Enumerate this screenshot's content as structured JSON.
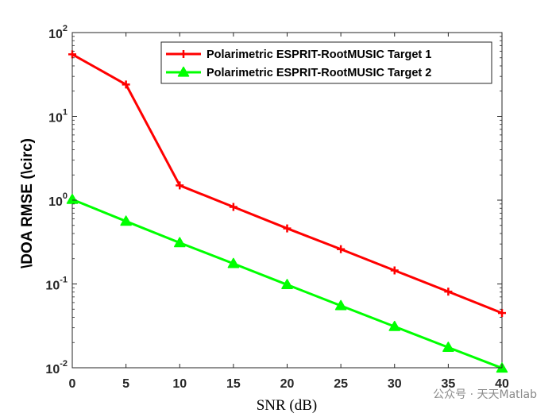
{
  "chart_data": {
    "type": "line",
    "xlabel": "SNR (dB)",
    "ylabel": "\\DOA RMSE (\\circ)",
    "xlim": [
      0,
      40
    ],
    "ylim": [
      0.01,
      100
    ],
    "yscale": "log",
    "x_ticks": [
      0,
      5,
      10,
      15,
      20,
      25,
      30,
      35,
      40
    ],
    "y_ticks": [
      {
        "value": 0.01,
        "base": "10",
        "exp": "-2"
      },
      {
        "value": 0.1,
        "base": "10",
        "exp": "-1"
      },
      {
        "value": 1,
        "base": "10",
        "exp": "0"
      },
      {
        "value": 10,
        "base": "10",
        "exp": "1"
      },
      {
        "value": 100,
        "base": "10",
        "exp": "2"
      }
    ],
    "x": [
      0,
      5,
      10,
      15,
      20,
      25,
      30,
      35,
      40
    ],
    "series": [
      {
        "name": "Polarimetric ESPRIT-RootMUSIC Target 1",
        "color": "#ff0000",
        "marker": "plus",
        "values": [
          55,
          24,
          1.5,
          0.83,
          0.46,
          0.26,
          0.145,
          0.081,
          0.045
        ]
      },
      {
        "name": "Polarimetric ESPRIT-RootMUSIC Target 2",
        "color": "#00ff00",
        "marker": "triangle",
        "values": [
          1.02,
          0.56,
          0.31,
          0.175,
          0.098,
          0.055,
          0.031,
          0.0175,
          0.0099
        ]
      }
    ],
    "legend_position": "top-right",
    "grid": false
  },
  "watermark": "公众号 · 天天Matlab"
}
